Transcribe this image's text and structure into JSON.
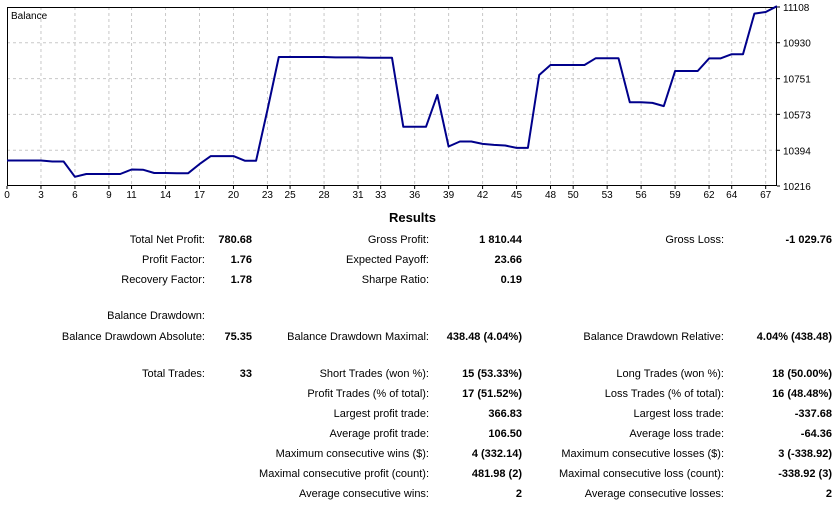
{
  "chart_data": {
    "type": "line",
    "title": "Balance",
    "x_ticks": [
      "0",
      "3",
      "6",
      "9",
      "11",
      "14",
      "17",
      "20",
      "23",
      "25",
      "28",
      "31",
      "33",
      "36",
      "39",
      "42",
      "45",
      "48",
      "50",
      "53",
      "56",
      "59",
      "62",
      "64",
      "67"
    ],
    "y_ticks": [
      "11108",
      "10930",
      "10751",
      "10573",
      "10394",
      "10216"
    ],
    "ylim": [
      10216,
      11108
    ],
    "xlim": [
      0,
      68
    ],
    "grid": true,
    "line_color": "#00008b",
    "x": [
      0,
      3,
      4,
      5,
      6,
      7,
      8,
      9,
      10,
      11,
      12,
      13,
      14,
      15,
      16,
      17,
      18,
      19,
      20,
      21,
      22,
      23,
      24,
      25,
      26,
      27,
      28,
      29,
      30,
      31,
      32,
      33,
      34,
      35,
      36,
      37,
      38,
      39,
      40,
      41,
      42,
      43,
      44,
      45,
      46,
      47,
      48,
      49,
      50,
      51,
      52,
      53,
      54,
      55,
      56,
      57,
      58,
      59,
      60,
      61,
      62,
      63,
      64,
      65,
      66,
      67,
      68
    ],
    "values": [
      10343,
      10343,
      10338,
      10338,
      10262,
      10276,
      10276,
      10276,
      10276,
      10298,
      10297,
      10281,
      10281,
      10280,
      10280,
      10325,
      10365,
      10365,
      10365,
      10342,
      10342,
      10594,
      10859,
      10859,
      10859,
      10859,
      10859,
      10857,
      10857,
      10857,
      10855,
      10855,
      10855,
      10511,
      10511,
      10511,
      10670,
      10413,
      10438,
      10438,
      10426,
      10421,
      10418,
      10406,
      10406,
      10769,
      10819,
      10819,
      10819,
      10819,
      10853,
      10853,
      10853,
      10633,
      10633,
      10630,
      10614,
      10789,
      10789,
      10789,
      10852,
      10852,
      10873,
      10873,
      11075,
      11083,
      11112
    ]
  },
  "results": {
    "title": "Results",
    "rows": [
      {
        "c1_label": "Total Net Profit:",
        "c1_value": "780.68",
        "c2_label": "Gross Profit:",
        "c2_value": "1 810.44",
        "c3_label": "Gross Loss:",
        "c3_value": "-1 029.76"
      },
      {
        "c1_label": "Profit Factor:",
        "c1_value": "1.76",
        "c2_label": "Expected Payoff:",
        "c2_value": "23.66",
        "c3_label": "",
        "c3_value": ""
      },
      {
        "c1_label": "Recovery Factor:",
        "c1_value": "1.78",
        "c2_label": "Sharpe Ratio:",
        "c2_value": "0.19",
        "c3_label": "",
        "c3_value": ""
      },
      {
        "c1_label": "Balance Drawdown:",
        "c1_value": "",
        "c2_label": "",
        "c2_value": "",
        "c3_label": "",
        "c3_value": ""
      },
      {
        "c1_label": "Balance Drawdown Absolute:",
        "c1_value": "75.35",
        "c2_label": "Balance Drawdown Maximal:",
        "c2_value": "438.48 (4.04%)",
        "c3_label": "Balance Drawdown Relative:",
        "c3_value": "4.04% (438.48)"
      },
      {
        "c1_label": "Total Trades:",
        "c1_value": "33",
        "c2_label": "Short Trades (won %):",
        "c2_value": "15 (53.33%)",
        "c3_label": "Long Trades (won %):",
        "c3_value": "18 (50.00%)"
      },
      {
        "c1_label": "",
        "c1_value": "",
        "c2_label": "Profit Trades (% of total):",
        "c2_value": "17 (51.52%)",
        "c3_label": "Loss Trades (% of total):",
        "c3_value": "16 (48.48%)"
      },
      {
        "c1_label": "",
        "c1_value": "",
        "c2_label": "Largest profit trade:",
        "c2_value": "366.83",
        "c3_label": "Largest loss trade:",
        "c3_value": "-337.68"
      },
      {
        "c1_label": "",
        "c1_value": "",
        "c2_label": "Average profit trade:",
        "c2_value": "106.50",
        "c3_label": "Average loss trade:",
        "c3_value": "-64.36"
      },
      {
        "c1_label": "",
        "c1_value": "",
        "c2_label": "Maximum consecutive wins ($):",
        "c2_value": "4 (332.14)",
        "c3_label": "Maximum consecutive losses ($):",
        "c3_value": "3 (-338.92)"
      },
      {
        "c1_label": "",
        "c1_value": "",
        "c2_label": "Maximal consecutive profit (count):",
        "c2_value": "481.98 (2)",
        "c3_label": "Maximal consecutive loss (count):",
        "c3_value": "-338.92 (3)"
      },
      {
        "c1_label": "",
        "c1_value": "",
        "c2_label": "Average consecutive wins:",
        "c2_value": "2",
        "c3_label": "Average consecutive losses:",
        "c3_value": "2"
      }
    ]
  }
}
